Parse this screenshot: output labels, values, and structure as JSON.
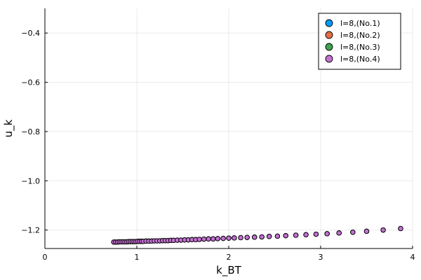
{
  "chart_data": {
    "type": "scatter",
    "title": "",
    "xlabel": "k_BT",
    "ylabel": "u_k",
    "xlim": [
      0,
      4
    ],
    "ylim": [
      -1.275,
      -0.3
    ],
    "xticks": [
      0,
      1,
      2,
      3,
      4
    ],
    "xtick_labels": [
      "0",
      "1",
      "2",
      "3",
      "4"
    ],
    "yticks": [
      -1.2,
      -1.0,
      -0.8,
      -0.6,
      -0.4
    ],
    "ytick_labels": [
      "−1.2",
      "−1.0",
      "−0.8",
      "−0.6",
      "−0.4"
    ],
    "grid": true,
    "legend_position": "top-right",
    "x": [
      0.75,
      0.77,
      0.79,
      0.81,
      0.83,
      0.85,
      0.87,
      0.89,
      0.91,
      0.93,
      0.95,
      0.97,
      0.99,
      1.01,
      1.03,
      1.05,
      1.07,
      1.1,
      1.13,
      1.16,
      1.19,
      1.22,
      1.25,
      1.28,
      1.31,
      1.34,
      1.37,
      1.4,
      1.44,
      1.48,
      1.52,
      1.56,
      1.6,
      1.64,
      1.68,
      1.73,
      1.78,
      1.83,
      1.88,
      1.94,
      2.0,
      2.06,
      2.13,
      2.2,
      2.28,
      2.36,
      2.44,
      2.53,
      2.62,
      2.73,
      2.84,
      2.95,
      3.07,
      3.2,
      3.35,
      3.5,
      3.68,
      3.87
    ],
    "series": [
      {
        "name": "l=8,(No.1)",
        "color": "#009AFA",
        "y": [
          -1.249,
          -1.249,
          -1.249,
          -1.248,
          -1.248,
          -1.248,
          -1.248,
          -1.248,
          -1.247,
          -1.247,
          -1.247,
          -1.247,
          -1.247,
          -1.246,
          -1.246,
          -1.246,
          -1.246,
          -1.245,
          -1.245,
          -1.245,
          -1.244,
          -1.244,
          -1.244,
          -1.243,
          -1.243,
          -1.243,
          -1.242,
          -1.242,
          -1.241,
          -1.241,
          -1.24,
          -1.24,
          -1.239,
          -1.239,
          -1.238,
          -1.237,
          -1.236,
          -1.236,
          -1.235,
          -1.234,
          -1.233,
          -1.232,
          -1.231,
          -1.23,
          -1.229,
          -1.228,
          -1.226,
          -1.225,
          -1.223,
          -1.221,
          -1.219,
          -1.217,
          -1.215,
          -1.212,
          -1.209,
          -1.205,
          -1.2,
          -1.194
        ]
      },
      {
        "name": "l=8,(No.2)",
        "color": "#E36F47",
        "y": [
          -1.249,
          -1.249,
          -1.249,
          -1.248,
          -1.248,
          -1.248,
          -1.248,
          -1.248,
          -1.247,
          -1.247,
          -1.247,
          -1.247,
          -1.247,
          -1.246,
          -1.246,
          -1.246,
          -1.246,
          -1.245,
          -1.245,
          -1.245,
          -1.244,
          -1.244,
          -1.244,
          -1.243,
          -1.243,
          -1.243,
          -1.242,
          -1.242,
          -1.241,
          -1.241,
          -1.24,
          -1.24,
          -1.239,
          -1.239,
          -1.238,
          -1.237,
          -1.236,
          -1.236,
          -1.235,
          -1.234,
          -1.233,
          -1.232,
          -1.231,
          -1.23,
          -1.229,
          -1.228,
          -1.226,
          -1.225,
          -1.223,
          -1.221,
          -1.219,
          -1.217,
          -1.215,
          -1.212,
          -1.209,
          -1.205,
          -1.2,
          -1.194
        ]
      },
      {
        "name": "l=8,(No.3)",
        "color": "#3EA44E",
        "y": [
          -1.249,
          -1.249,
          -1.249,
          -1.248,
          -1.248,
          -1.248,
          -1.248,
          -1.248,
          -1.247,
          -1.247,
          -1.247,
          -1.247,
          -1.247,
          -1.246,
          -1.246,
          -1.246,
          -1.246,
          -1.245,
          -1.245,
          -1.245,
          -1.244,
          -1.244,
          -1.244,
          -1.243,
          -1.243,
          -1.243,
          -1.242,
          -1.242,
          -1.241,
          -1.241,
          -1.24,
          -1.24,
          -1.239,
          -1.239,
          -1.238,
          -1.237,
          -1.236,
          -1.236,
          -1.235,
          -1.234,
          -1.233,
          -1.232,
          -1.231,
          -1.23,
          -1.229,
          -1.228,
          -1.226,
          -1.225,
          -1.223,
          -1.221,
          -1.219,
          -1.217,
          -1.215,
          -1.212,
          -1.209,
          -1.205,
          -1.2,
          -1.194
        ]
      },
      {
        "name": "l=8,(No.4)",
        "color": "#C371D2",
        "y": [
          -1.249,
          -1.249,
          -1.249,
          -1.248,
          -1.248,
          -1.248,
          -1.248,
          -1.248,
          -1.247,
          -1.247,
          -1.247,
          -1.247,
          -1.247,
          -1.246,
          -1.246,
          -1.246,
          -1.246,
          -1.245,
          -1.245,
          -1.245,
          -1.244,
          -1.244,
          -1.244,
          -1.243,
          -1.243,
          -1.243,
          -1.242,
          -1.242,
          -1.241,
          -1.241,
          -1.24,
          -1.24,
          -1.239,
          -1.239,
          -1.238,
          -1.237,
          -1.236,
          -1.236,
          -1.235,
          -1.234,
          -1.233,
          -1.232,
          -1.231,
          -1.23,
          -1.229,
          -1.228,
          -1.226,
          -1.225,
          -1.223,
          -1.221,
          -1.219,
          -1.217,
          -1.215,
          -1.212,
          -1.209,
          -1.205,
          -1.2,
          -1.194
        ]
      }
    ]
  }
}
